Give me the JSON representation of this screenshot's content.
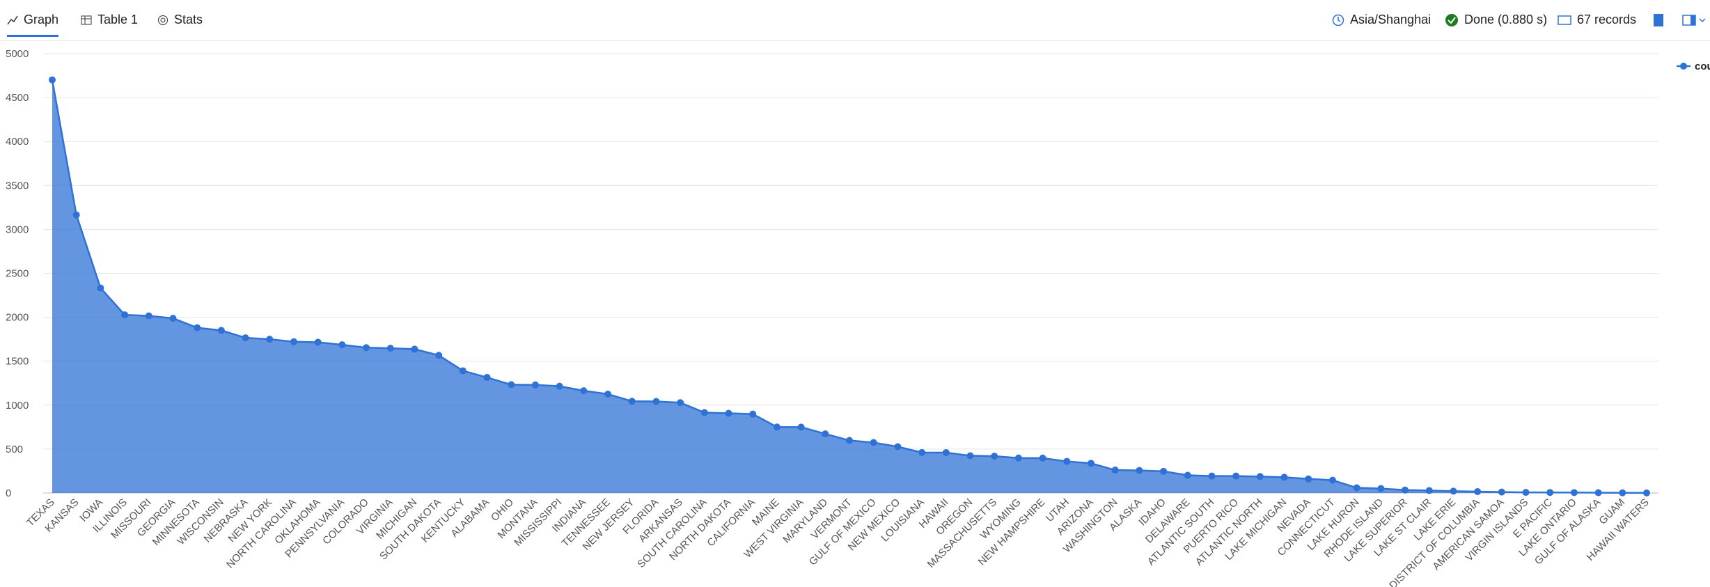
{
  "toolbar": {
    "tabs": [
      "Graph",
      "Table 1",
      "Stats"
    ],
    "timezone": "Asia/Shanghai",
    "status": "Done (0.880 s)",
    "records": "67 records"
  },
  "chart_data": {
    "type": "area",
    "categories": [
      "TEXAS",
      "KANSAS",
      "IOWA",
      "ILLINOIS",
      "MISSOURI",
      "GEORGIA",
      "MINNESOTA",
      "WISCONSIN",
      "NEBRASKA",
      "NEW YORK",
      "NORTH CAROLINA",
      "OKLAHOMA",
      "PENNSYLVANIA",
      "COLORADO",
      "VIRGINIA",
      "MICHIGAN",
      "SOUTH DAKOTA",
      "KENTUCKY",
      "ALABAMA",
      "OHIO",
      "MONTANA",
      "MISSISSIPPI",
      "INDIANA",
      "TENNESSEE",
      "NEW JERSEY",
      "FLORIDA",
      "ARKANSAS",
      "SOUTH CAROLINA",
      "NORTH DAKOTA",
      "CALIFORNIA",
      "MAINE",
      "WEST VIRGINIA",
      "MARYLAND",
      "VERMONT",
      "GULF OF MEXICO",
      "NEW MEXICO",
      "LOUISIANA",
      "HAWAII",
      "OREGON",
      "MASSACHUSETTS",
      "WYOMING",
      "NEW HAMPSHIRE",
      "UTAH",
      "ARIZONA",
      "WASHINGTON",
      "ALASKA",
      "IDAHO",
      "DELAWARE",
      "ATLANTIC SOUTH",
      "PUERTO RICO",
      "ATLANTIC NORTH",
      "LAKE MICHIGAN",
      "NEVADA",
      "CONNECTICUT",
      "LAKE HURON",
      "RHODE ISLAND",
      "LAKE SUPERIOR",
      "LAKE ST CLAIR",
      "LAKE ERIE",
      "DISTRICT OF COLUMBIA",
      "AMERICAN SAMOA",
      "VIRGIN ISLANDS",
      "E PACIFIC",
      "LAKE ONTARIO",
      "GULF OF ALASKA",
      "GUAM",
      "HAWAII WATERS"
    ],
    "series": [
      {
        "name": "count_",
        "color": "#2f72d6",
        "values": [
          4701,
          3164,
          2333,
          2028,
          2016,
          1988,
          1881,
          1850,
          1766,
          1750,
          1721,
          1716,
          1687,
          1654,
          1647,
          1637,
          1567,
          1391,
          1315,
          1233,
          1230,
          1215,
          1164,
          1125,
          1044,
          1042,
          1028,
          915,
          907,
          898,
          751,
          750,
          673,
          598,
          574,
          527,
          461,
          460,
          424,
          419,
          398,
          397,
          360,
          338,
          261,
          257,
          247,
          202,
          193,
          193,
          187,
          179,
          160,
          146,
          59,
          51,
          34,
          28,
          21,
          16,
          11,
          7,
          6,
          5,
          3,
          2,
          1
        ]
      }
    ],
    "ylim": [
      0,
      5000
    ],
    "yticks": [
      0,
      500,
      1000,
      1500,
      2000,
      2500,
      3000,
      3500,
      4000,
      4500,
      5000
    ],
    "grid": true,
    "legend": "top-right"
  }
}
